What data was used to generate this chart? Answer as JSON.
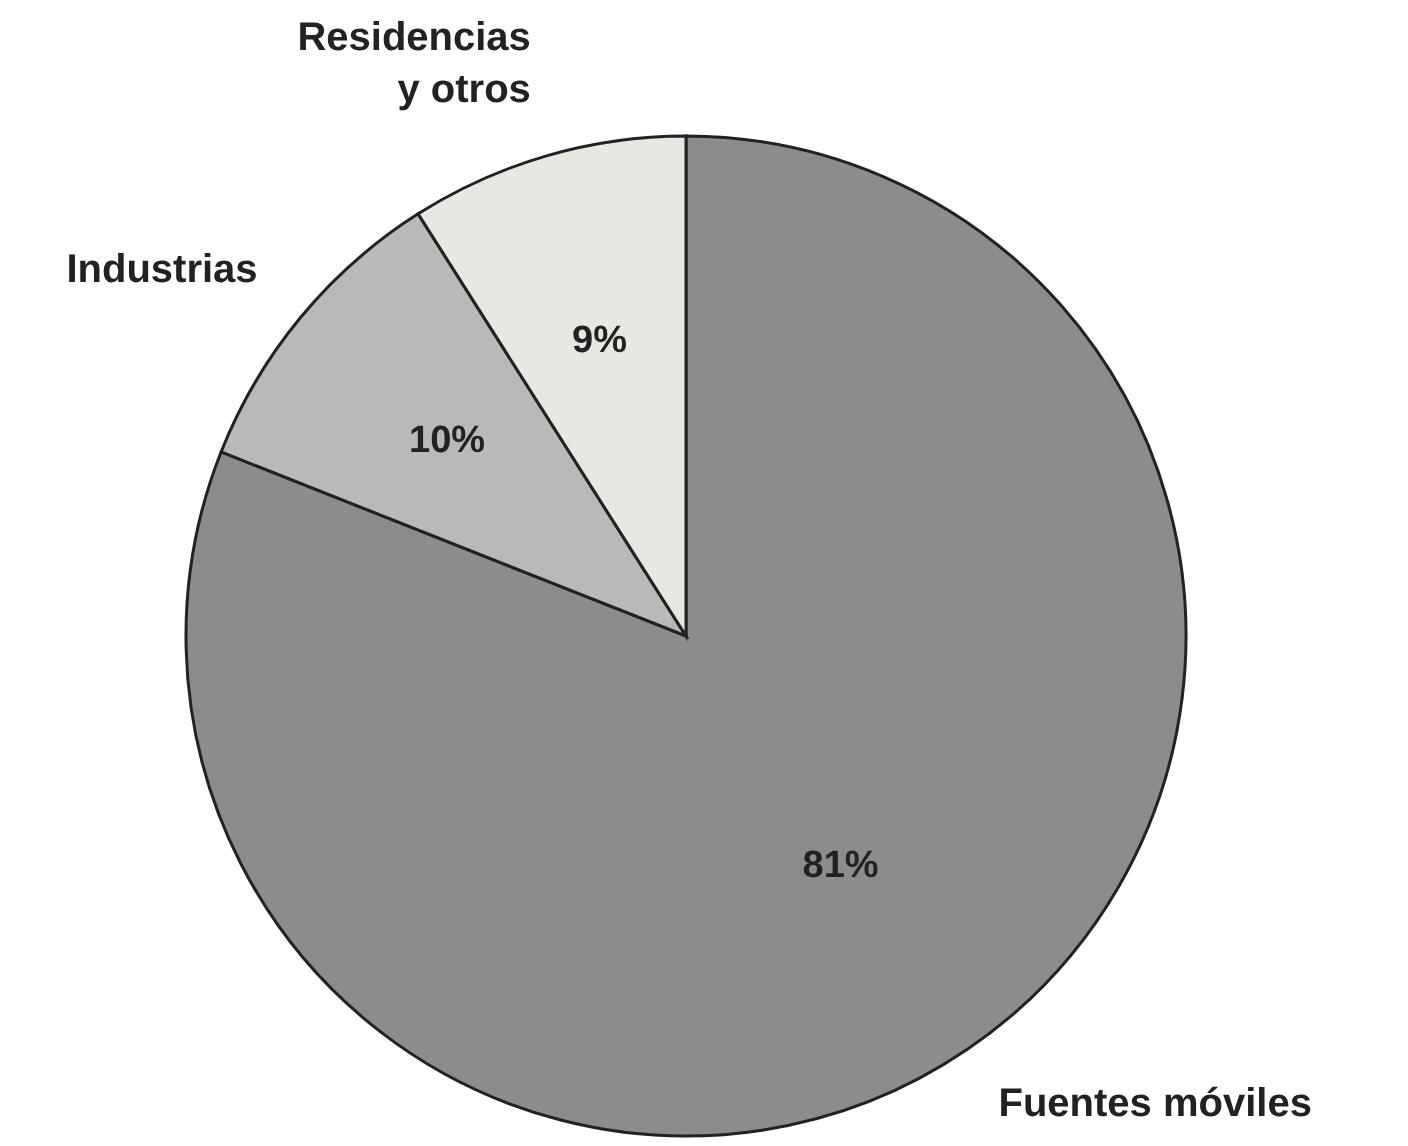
{
  "chart_data": {
    "type": "pie",
    "categories": [
      "Fuentes móviles",
      "Industrias",
      "Residencias\ny otros"
    ],
    "values": [
      81,
      10,
      9
    ],
    "colors": [
      "#8c8c8c",
      "#b9b9b9",
      "#e9e7e1"
    ],
    "value_labels": [
      "81%",
      "10%",
      "9%"
    ]
  }
}
